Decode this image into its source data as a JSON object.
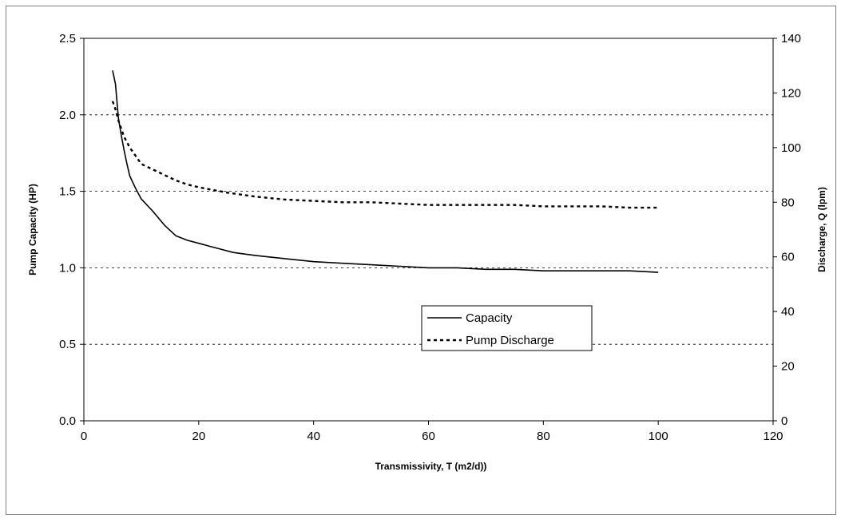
{
  "chart_data": {
    "type": "line",
    "title": "",
    "xlabel": "Transmissivity, T (m2/d))",
    "ylabel": "Pump Capacity (HP)",
    "y2label": "Discharge, Q (lpm)",
    "xlim": [
      0,
      120
    ],
    "ylim": [
      0,
      2.5
    ],
    "y2lim": [
      0,
      140
    ],
    "x_ticks": [
      "0",
      "20",
      "40",
      "60",
      "80",
      "100",
      "120"
    ],
    "y_ticks": [
      "0.0",
      "0.5",
      "1.0",
      "1.5",
      "2.0",
      "2.5"
    ],
    "y2_ticks": [
      "0",
      "20",
      "40",
      "60",
      "80",
      "100",
      "120",
      "140"
    ],
    "grid": "horizontal dashed",
    "legend_placement": "center-right",
    "series": [
      {
        "name": "Capacity",
        "axis": "left",
        "style": "solid",
        "color": "#000000",
        "x": [
          5,
          5.5,
          6,
          6.5,
          7,
          7.5,
          8,
          9,
          10,
          12,
          14,
          16,
          18,
          20,
          22,
          24,
          26,
          28,
          30,
          35,
          40,
          45,
          50,
          55,
          60,
          65,
          70,
          75,
          80,
          85,
          90,
          95,
          100
        ],
        "y": [
          2.29,
          2.2,
          1.98,
          1.87,
          1.77,
          1.68,
          1.6,
          1.52,
          1.45,
          1.37,
          1.28,
          1.21,
          1.18,
          1.16,
          1.14,
          1.12,
          1.1,
          1.09,
          1.08,
          1.06,
          1.04,
          1.03,
          1.02,
          1.01,
          1.0,
          1.0,
          0.99,
          0.99,
          0.98,
          0.98,
          0.98,
          0.98,
          0.97
        ]
      },
      {
        "name": "Pump Discharge",
        "axis": "right",
        "style": "dashed",
        "color": "#000000",
        "x": [
          5,
          5.5,
          6,
          6.5,
          7,
          7.5,
          8,
          9,
          10,
          12,
          14,
          16,
          18,
          20,
          25,
          30,
          35,
          40,
          45,
          50,
          55,
          60,
          65,
          70,
          75,
          80,
          85,
          90,
          95,
          100
        ],
        "y": [
          117,
          114,
          110,
          107,
          104,
          102,
          100,
          97,
          94,
          92,
          90,
          88,
          86.5,
          85.5,
          83.5,
          82,
          81,
          80.5,
          80,
          80,
          79.5,
          79,
          79,
          79,
          79,
          78.5,
          78.5,
          78.5,
          78,
          78
        ]
      }
    ]
  }
}
